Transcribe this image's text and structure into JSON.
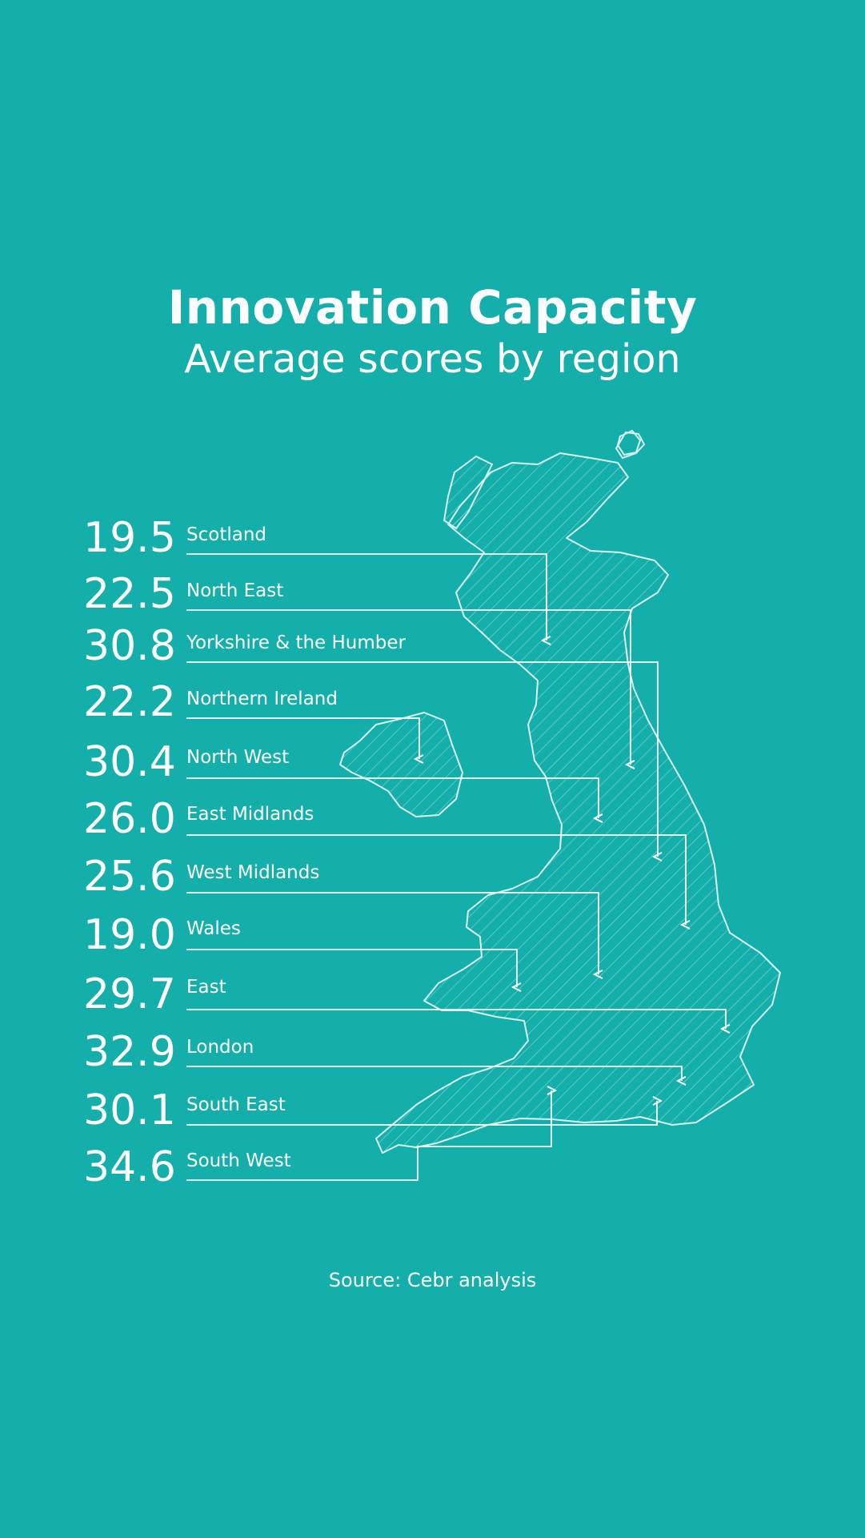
{
  "title": "Innovation Capacity",
  "subtitle": "Average scores by region",
  "source": "Source: Cebr analysis",
  "colors": {
    "background": "#14afaa",
    "text": "#ffffff",
    "map_outline": "#d9f3f1"
  },
  "regions": [
    {
      "value": "19.5",
      "name": "Scotland"
    },
    {
      "value": "22.5",
      "name": "North East"
    },
    {
      "value": "30.8",
      "name": "Yorkshire & the Humber"
    },
    {
      "value": "22.2",
      "name": "Northern Ireland"
    },
    {
      "value": "30.4",
      "name": "North West"
    },
    {
      "value": "26.0",
      "name": "East Midlands"
    },
    {
      "value": "25.6",
      "name": "West Midlands"
    },
    {
      "value": "19.0",
      "name": "Wales"
    },
    {
      "value": "29.7",
      "name": "East"
    },
    {
      "value": "32.9",
      "name": "London"
    },
    {
      "value": "30.1",
      "name": "South East"
    },
    {
      "value": "34.6",
      "name": "South West"
    }
  ]
}
